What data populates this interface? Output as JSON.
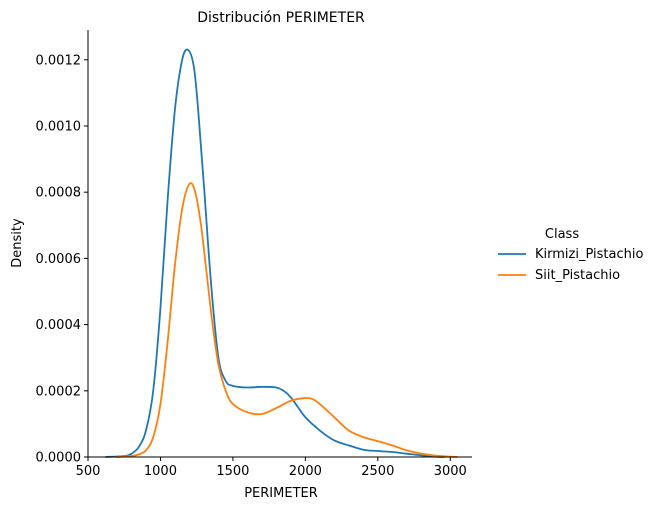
{
  "chart_data": {
    "type": "line",
    "title": "Distribución PERIMETER",
    "xlabel": "PERIMETER",
    "ylabel": "Density",
    "xlim": [
      500,
      3150
    ],
    "ylim": [
      0,
      0.00129
    ],
    "x_ticks": [
      500,
      1000,
      1500,
      2000,
      2500,
      3000
    ],
    "x_tick_labels": [
      "500",
      "1000",
      "1500",
      "2000",
      "2500",
      "3000"
    ],
    "y_ticks": [
      0,
      0.0002,
      0.0004,
      0.0006,
      0.0008,
      0.001,
      0.0012
    ],
    "y_tick_labels": [
      "0.0000",
      "0.0002",
      "0.0004",
      "0.0006",
      "0.0008",
      "0.0010",
      "0.0012"
    ],
    "grid": false,
    "legend": {
      "title": "Class",
      "placement": "right, outside plot"
    },
    "series": [
      {
        "name": "Kirmizi_Pistachio",
        "color": "#1f77b4",
        "points": [
          [
            620,
            0
          ],
          [
            750,
            3e-06
          ],
          [
            800,
            1e-05
          ],
          [
            850,
            3e-05
          ],
          [
            900,
            8e-05
          ],
          [
            950,
            0.0002
          ],
          [
            1000,
            0.00045
          ],
          [
            1050,
            0.00078
          ],
          [
            1100,
            0.00105
          ],
          [
            1150,
            0.0012
          ],
          [
            1190,
            0.00123
          ],
          [
            1230,
            0.00118
          ],
          [
            1260,
            0.00105
          ],
          [
            1300,
            0.00082
          ],
          [
            1350,
            0.00052
          ],
          [
            1400,
            0.0003
          ],
          [
            1450,
            0.00023
          ],
          [
            1500,
            0.000215
          ],
          [
            1600,
            0.00021
          ],
          [
            1700,
            0.000212
          ],
          [
            1800,
            0.00021
          ],
          [
            1850,
            0.0002
          ],
          [
            1900,
            0.00018
          ],
          [
            1950,
            0.00015
          ],
          [
            2000,
            0.00012
          ],
          [
            2100,
            8e-05
          ],
          [
            2200,
            5e-05
          ],
          [
            2300,
            3.5e-05
          ],
          [
            2400,
            2.2e-05
          ],
          [
            2500,
            1.8e-05
          ],
          [
            2600,
            1.5e-05
          ],
          [
            2700,
            1e-05
          ],
          [
            2800,
            5e-06
          ],
          [
            2900,
            1e-06
          ],
          [
            2960,
            0
          ]
        ]
      },
      {
        "name": "Siit_Pistachio",
        "color": "#ff7f0e",
        "points": [
          [
            690,
            0
          ],
          [
            800,
            3e-06
          ],
          [
            850,
            8e-06
          ],
          [
            900,
            2e-05
          ],
          [
            950,
            6e-05
          ],
          [
            1000,
            0.00016
          ],
          [
            1050,
            0.00035
          ],
          [
            1100,
            0.00058
          ],
          [
            1150,
            0.00075
          ],
          [
            1200,
            0.000825
          ],
          [
            1240,
            0.0008
          ],
          [
            1280,
            0.0007
          ],
          [
            1320,
            0.00055
          ],
          [
            1360,
            0.0004
          ],
          [
            1400,
            0.00028
          ],
          [
            1450,
            0.0002
          ],
          [
            1500,
            0.00016
          ],
          [
            1600,
            0.000135
          ],
          [
            1700,
            0.00013
          ],
          [
            1800,
            0.000148
          ],
          [
            1900,
            0.00017
          ],
          [
            2000,
            0.000178
          ],
          [
            2050,
            0.000175
          ],
          [
            2100,
            0.00016
          ],
          [
            2200,
            0.00012
          ],
          [
            2300,
            8e-05
          ],
          [
            2400,
            6e-05
          ],
          [
            2500,
            4.8e-05
          ],
          [
            2600,
            3.5e-05
          ],
          [
            2700,
            2e-05
          ],
          [
            2800,
            1e-05
          ],
          [
            2900,
            4e-06
          ],
          [
            3000,
            1e-06
          ],
          [
            3050,
            0
          ]
        ]
      }
    ]
  }
}
